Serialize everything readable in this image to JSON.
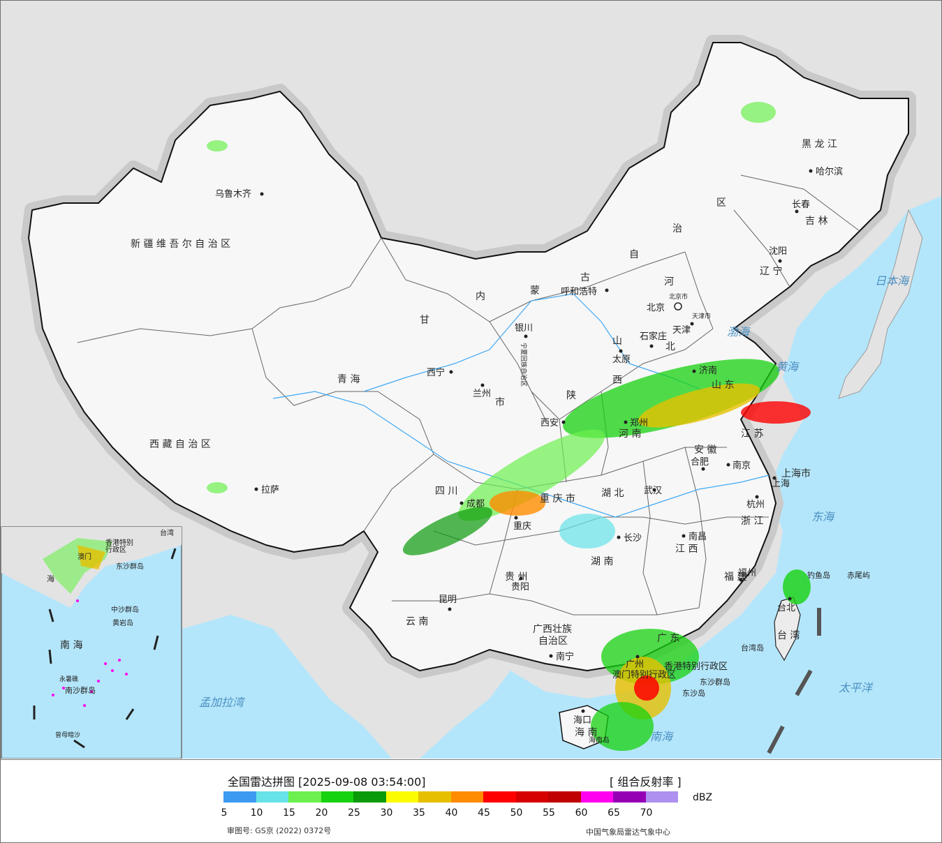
{
  "legend": {
    "title": "全国雷达拼图 [2025-09-08 03:54:00]",
    "product": "[ 组合反射率 ]",
    "unit": "dBZ",
    "approval": "审图号: GS京 (2022) 0372号",
    "source": "中国气象局雷达气象中心",
    "ticks": [
      "5",
      "10",
      "15",
      "20",
      "25",
      "30",
      "35",
      "40",
      "45",
      "50",
      "55",
      "60",
      "65",
      "70"
    ],
    "colors": [
      "#3c9bf0",
      "#65e3e8",
      "#6cf04f",
      "#17d20f",
      "#0a9a0a",
      "#fcfc00",
      "#e6c000",
      "#ff8c00",
      "#fe0000",
      "#d60000",
      "#c00000",
      "#ff00f0",
      "#9600b4",
      "#ad90f0"
    ]
  },
  "map": {
    "provinces": [
      {
        "name": "新疆维吾尔自治区",
        "label": "新 疆 维 吾 尔 自 治 区"
      },
      {
        "name": "西藏自治区",
        "label": "西 藏 自 治 区"
      },
      {
        "name": "青海",
        "label": "青  海"
      },
      {
        "name": "甘",
        "label": "甘"
      },
      {
        "name": "内",
        "label": "内"
      },
      {
        "name": "蒙",
        "label": "蒙"
      },
      {
        "name": "古",
        "label": "古"
      },
      {
        "name": "自",
        "label": "自"
      },
      {
        "name": "治",
        "label": "治"
      },
      {
        "name": "区",
        "label": "区"
      },
      {
        "name": "黑龙江",
        "label": "黑  龙  江"
      },
      {
        "name": "吉林",
        "label": "吉  林"
      },
      {
        "name": "辽宁",
        "label": "辽  宁"
      },
      {
        "name": "河",
        "label": "河"
      },
      {
        "name": "北",
        "label": "北"
      },
      {
        "name": "山",
        "label": "山"
      },
      {
        "name": "西",
        "label": "西"
      },
      {
        "name": "陕",
        "label": "陕"
      },
      {
        "name": "山东",
        "label": "山  东"
      },
      {
        "name": "河南",
        "label": "河  南"
      },
      {
        "name": "江苏",
        "label": "江  苏"
      },
      {
        "name": "安徽",
        "label": "安  徽"
      },
      {
        "name": "上海市",
        "label": "上海市"
      },
      {
        "name": "浙江",
        "label": "浙  江"
      },
      {
        "name": "湖北",
        "label": "湖  北"
      },
      {
        "name": "四川",
        "label": "四  川"
      },
      {
        "name": "重庆市",
        "label": "重 庆 市"
      },
      {
        "name": "湖南",
        "label": "湖  南"
      },
      {
        "name": "江西",
        "label": "江  西"
      },
      {
        "name": "福建",
        "label": "福  建"
      },
      {
        "name": "贵州",
        "label": "贵  州"
      },
      {
        "name": "云南",
        "label": "云  南"
      },
      {
        "name": "广西壮族自治区",
        "label": "广西壮族"
      },
      {
        "name": "广西壮族自治区2",
        "label": "自治区"
      },
      {
        "name": "广东",
        "label": "广  东"
      },
      {
        "name": "海南",
        "label": "海  南"
      },
      {
        "name": "台湾",
        "label": "台  湾"
      },
      {
        "name": "甘肃市",
        "label": "市"
      },
      {
        "name": "宁夏回族自治区",
        "label": "宁夏回族自治区"
      }
    ],
    "cities": [
      {
        "name": "乌鲁木齐"
      },
      {
        "name": "拉萨"
      },
      {
        "name": "西宁"
      },
      {
        "name": "兰州"
      },
      {
        "name": "银川"
      },
      {
        "name": "呼和浩特"
      },
      {
        "name": "北京"
      },
      {
        "name": "天津"
      },
      {
        "name": "石家庄"
      },
      {
        "name": "太原"
      },
      {
        "name": "济南"
      },
      {
        "name": "郑州"
      },
      {
        "name": "西安"
      },
      {
        "name": "成都"
      },
      {
        "name": "重庆"
      },
      {
        "name": "武汉"
      },
      {
        "name": "合肥"
      },
      {
        "name": "南京"
      },
      {
        "name": "上海"
      },
      {
        "name": "杭州"
      },
      {
        "name": "南昌"
      },
      {
        "name": "长沙"
      },
      {
        "name": "贵阳"
      },
      {
        "name": "昆明"
      },
      {
        "name": "南宁"
      },
      {
        "name": "福州"
      },
      {
        "name": "台北"
      },
      {
        "name": "哈尔滨"
      },
      {
        "name": "长春"
      },
      {
        "name": "沈阳"
      },
      {
        "name": "海口"
      },
      {
        "name": "广州"
      },
      {
        "name": "香港特别行政区"
      },
      {
        "name": "澳门特别行政区"
      },
      {
        "name": "台湾岛"
      },
      {
        "name": "东沙群岛"
      },
      {
        "name": "东沙岛"
      },
      {
        "name": "钓鱼岛"
      },
      {
        "name": "赤尾屿"
      },
      {
        "name": "海南岛"
      },
      {
        "name": "北京市"
      },
      {
        "name": "天津市"
      }
    ],
    "seas": [
      {
        "name": "日本海"
      },
      {
        "name": "东海"
      },
      {
        "name": "太平洋"
      },
      {
        "name": "南海"
      },
      {
        "name": "孟加拉湾"
      },
      {
        "name": "渤海"
      },
      {
        "name": "黄海"
      }
    ],
    "inset": {
      "labels": [
        "南 海",
        "中沙群岛",
        "黄岩岛",
        "南沙群岛",
        "永暑礁",
        "曾母暗沙",
        "海",
        "香港特别",
        "行政区",
        "澳门",
        "台湾",
        "东沙群岛"
      ]
    }
  }
}
